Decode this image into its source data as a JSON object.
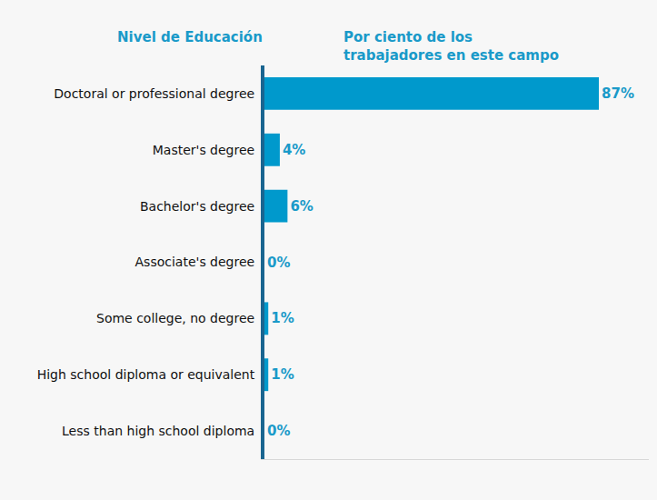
{
  "chart_data": {
    "type": "bar",
    "orientation": "horizontal",
    "y_label": "Nivel de Educación",
    "x_label": [
      "Por ciento de los",
      "trabajadores en este campo"
    ],
    "categories": [
      "Doctoral or professional degree",
      "Master's degree",
      "Bachelor's degree",
      "Associate's degree",
      "Some college, no degree",
      "High school diploma or equivalent",
      "Less than high school diploma"
    ],
    "values": [
      87,
      4,
      6,
      0,
      1,
      1,
      0
    ],
    "value_labels": [
      "87%",
      "4%",
      "6%",
      "0%",
      "1%",
      "1%",
      "0%"
    ],
    "color": "#0099cc",
    "data_labels": true,
    "tick_labels": "y",
    "xlim": [
      0,
      100
    ],
    "xticks": [],
    "grid": false
  }
}
